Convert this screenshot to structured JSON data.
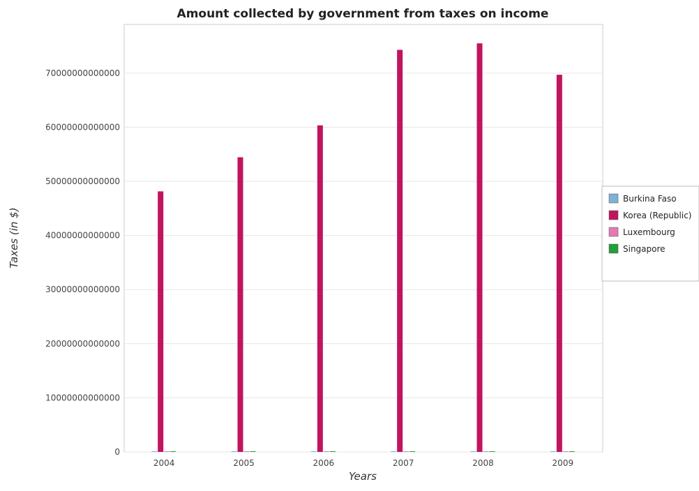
{
  "chart_data": {
    "type": "bar",
    "title": "Amount collected by government from taxes on income",
    "xlabel": "Years",
    "ylabel": "Taxes (in $)",
    "categories": [
      "2004",
      "2005",
      "2006",
      "2007",
      "2008",
      "2009"
    ],
    "ylim": [
      0,
      79000000000000
    ],
    "yticks": [
      0,
      10000000000000,
      20000000000000,
      30000000000000,
      40000000000000,
      50000000000000,
      60000000000000,
      70000000000000
    ],
    "ytick_labels": [
      "0",
      "10000000000000",
      "20000000000000",
      "30000000000000",
      "40000000000000",
      "50000000000000",
      "60000000000000",
      "70000000000000"
    ],
    "grid": true,
    "legend_position": "right",
    "series": [
      {
        "name": "Burkina Faso",
        "color": "#7fb2d4",
        "values": [
          70000000000,
          80000000000,
          90000000000,
          110000000000,
          110000000000,
          120000000000
        ]
      },
      {
        "name": "Korea (Republic)",
        "color": "#c0145e",
        "values": [
          48150000000000,
          54450000000000,
          60350000000000,
          74300000000000,
          75500000000000,
          69700000000000
        ]
      },
      {
        "name": "Luxembourg",
        "color": "#e27ab4",
        "values": [
          3000000000,
          3200000000,
          3500000000,
          3800000000,
          4000000000,
          3900000000
        ]
      },
      {
        "name": "Singapore",
        "color": "#22a03c",
        "values": [
          9000000000,
          10000000000,
          11000000000,
          13000000000,
          14000000000,
          13500000000
        ]
      }
    ]
  }
}
